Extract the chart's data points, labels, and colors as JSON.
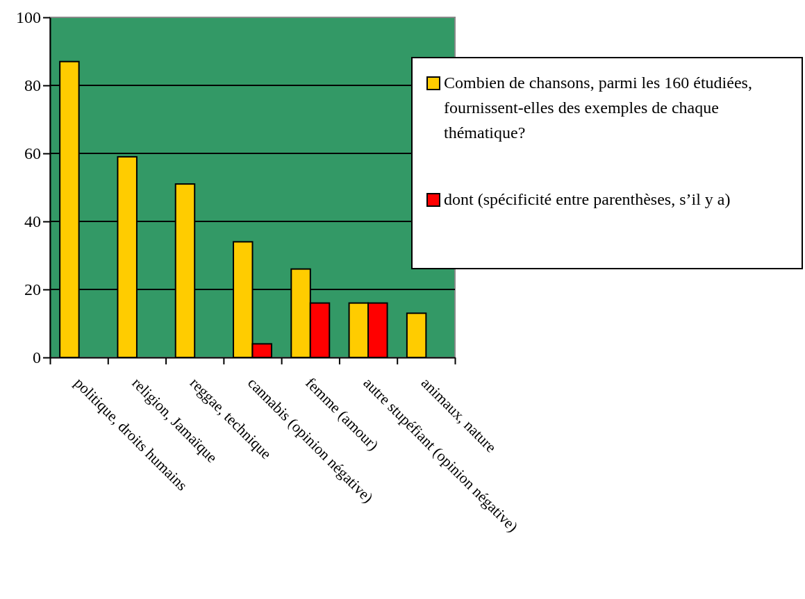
{
  "chart_data": {
    "type": "bar",
    "categories": [
      "politique, droits humains",
      "religion, Jamaïque",
      "reggae, technique",
      "cannabis (opinion négative)",
      "femme (amour)",
      "autre stupéfiant (opinion négative)",
      "animaux, nature"
    ],
    "series": [
      {
        "name": "Combien de chansons, parmi les 160 étudiées, fournissent-elles des exemples de chaque thématique?",
        "color": "#ffcc00",
        "values": [
          87,
          59,
          51,
          34,
          26,
          16,
          13
        ]
      },
      {
        "name": "dont (spécificité entre parenthèses, s’il y a)",
        "color": "#ff0000",
        "values": [
          null,
          null,
          null,
          4,
          16,
          16,
          null
        ]
      }
    ],
    "ylim": [
      0,
      100
    ],
    "yticks": [
      0,
      20,
      40,
      60,
      80,
      100
    ],
    "grid": "y",
    "legend": "right"
  }
}
